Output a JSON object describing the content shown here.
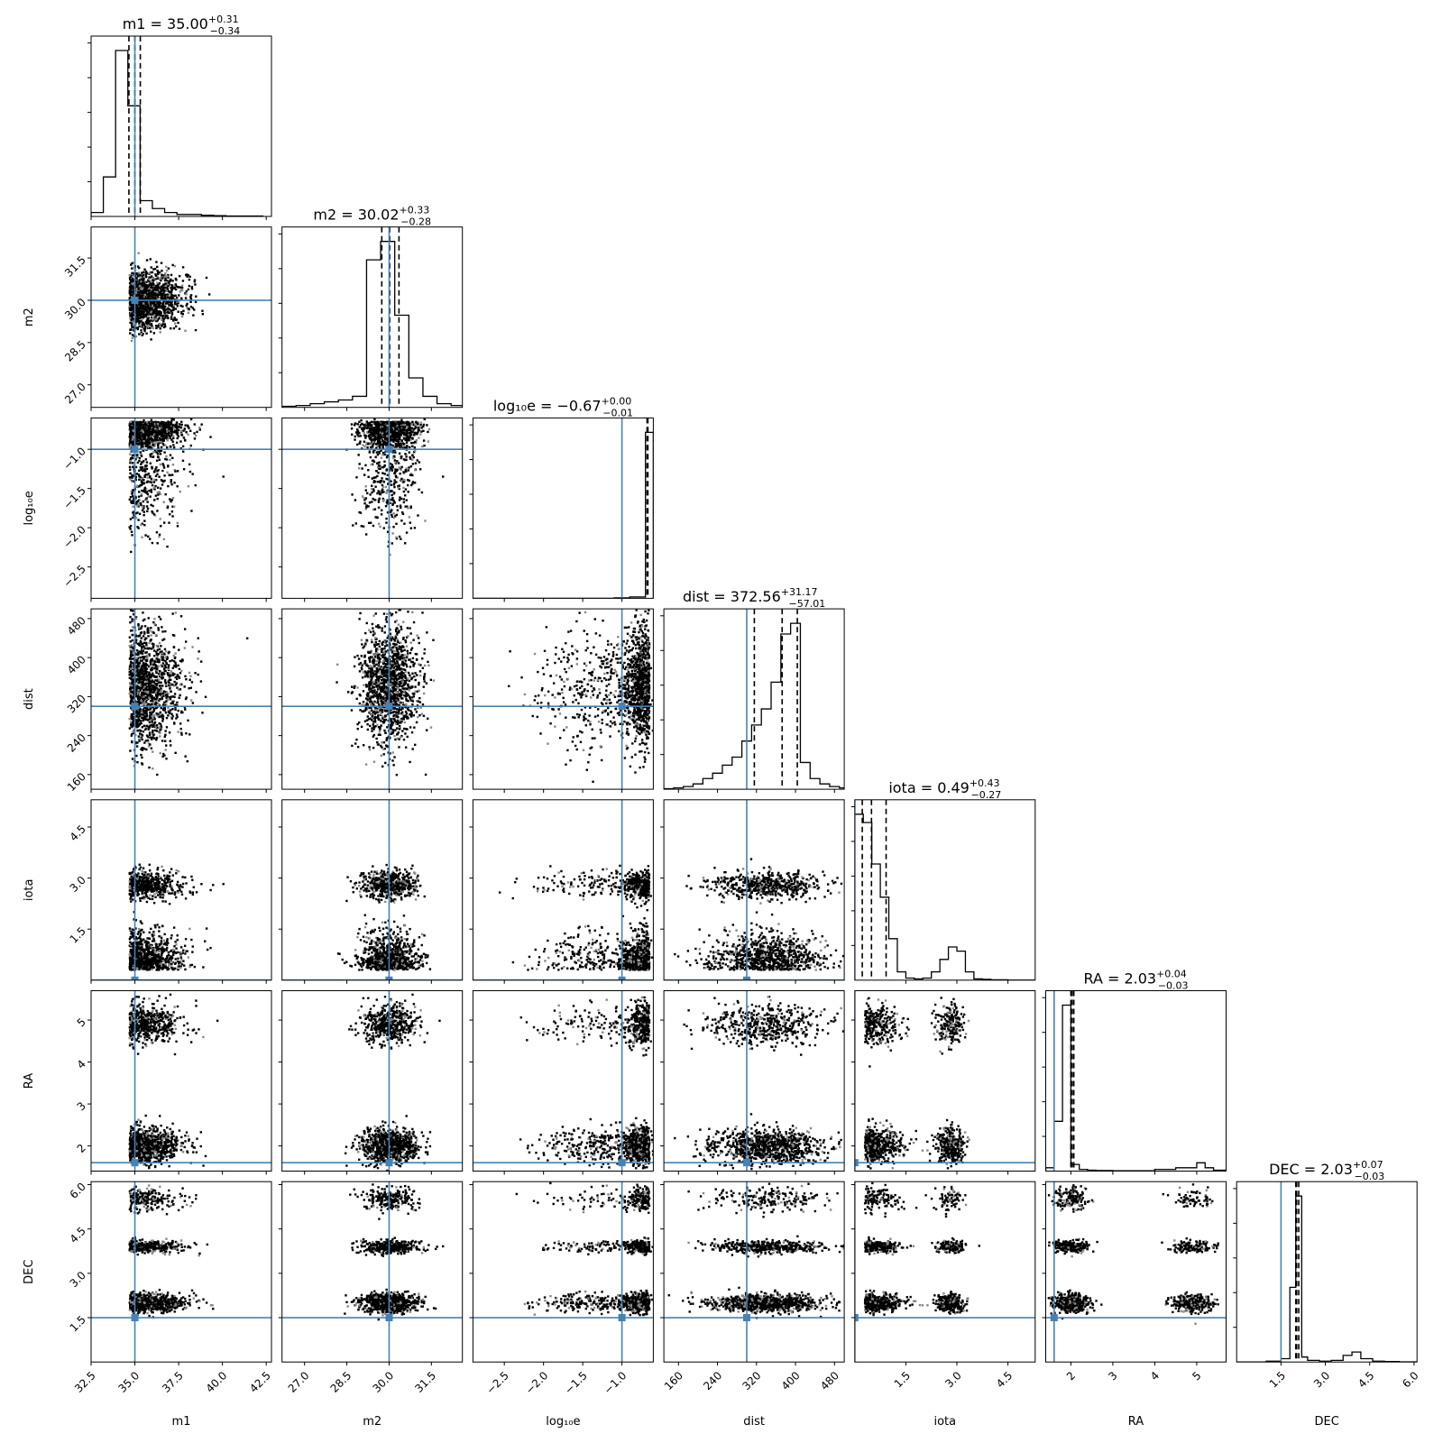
{
  "chart_data": {
    "type": "corner",
    "parameters": [
      {
        "key": "m1",
        "label": "m1",
        "range": [
          32.5,
          42.8
        ],
        "ticks": [
          32.5,
          35.0,
          37.5,
          40.0,
          42.5
        ],
        "tick_labels": [
          "32.5",
          "35.0",
          "37.5",
          "40.0",
          "42.5"
        ],
        "truth": 35.0,
        "median": 35.0,
        "plus": "0.31",
        "minus": "0.34",
        "title": "m1 = 35.00"
      },
      {
        "key": "m2",
        "label": "m2",
        "range": [
          26.2,
          32.6
        ],
        "ticks": [
          27.0,
          28.5,
          30.0,
          31.5
        ],
        "tick_labels": [
          "27.0",
          "28.5",
          "30.0",
          "31.5"
        ],
        "truth": 30.0,
        "median": 30.02,
        "plus": "0.33",
        "minus": "0.28",
        "title": "m2 = 30.02"
      },
      {
        "key": "log10e",
        "label": "log₁₀e",
        "range": [
          -2.9,
          -0.6
        ],
        "ticks": [
          -2.5,
          -2.0,
          -1.5,
          -1.0
        ],
        "tick_labels": [
          "−2.5",
          "−2.0",
          "−1.5",
          "−1.0"
        ],
        "truth": -1.0,
        "median": -0.67,
        "plus": "0.00",
        "minus": "0.01",
        "title": "log₁₀e = −0.67"
      },
      {
        "key": "dist",
        "label": "dist",
        "range": [
          130,
          500
        ],
        "ticks": [
          160,
          240,
          320,
          400,
          480
        ],
        "tick_labels": [
          "160",
          "240",
          "320",
          "400",
          "480"
        ],
        "truth": 300,
        "median": 372.56,
        "plus": "31.17",
        "minus": "57.01",
        "title": "dist = 372.56"
      },
      {
        "key": "iota",
        "label": "iota",
        "range": [
          0.0,
          5.3
        ],
        "ticks": [
          1.5,
          3.0,
          4.5
        ],
        "tick_labels": [
          "1.5",
          "3.0",
          "4.5"
        ],
        "truth": 0.0,
        "median": 0.49,
        "plus": "0.43",
        "minus": "0.27",
        "title": "iota = 0.49"
      },
      {
        "key": "RA",
        "label": "RA",
        "range": [
          1.4,
          5.7
        ],
        "ticks": [
          2,
          3,
          4,
          5
        ],
        "tick_labels": [
          "2",
          "3",
          "4",
          "5"
        ],
        "truth": 1.6,
        "median": 2.03,
        "plus": "0.04",
        "minus": "0.03",
        "title": "RA = 2.03"
      },
      {
        "key": "DEC",
        "label": "DEC",
        "range": [
          0.0,
          6.1
        ],
        "ticks": [
          1.5,
          3.0,
          4.5,
          6.0
        ],
        "tick_labels": [
          "1.5",
          "3.0",
          "4.5",
          "6.0"
        ],
        "truth": 1.5,
        "median": 2.03,
        "plus": "0.07",
        "minus": "0.03",
        "title": "DEC = 2.03"
      }
    ],
    "histograms": [
      {
        "bins": [
          32.5,
          33.2,
          33.9,
          34.6,
          35.3,
          36.0,
          36.7,
          37.4,
          38.1,
          38.8,
          39.5,
          40.2,
          40.9,
          41.6,
          42.3
        ],
        "counts": [
          1,
          10,
          42,
          28,
          4,
          2,
          1,
          0.5,
          0.5,
          0.3,
          0.2,
          0.1,
          0.1,
          0.1
        ]
      },
      {
        "bins": [
          26.2,
          26.7,
          27.2,
          27.7,
          28.2,
          28.7,
          29.2,
          29.7,
          30.2,
          30.7,
          31.2,
          31.7,
          32.2,
          32.6
        ],
        "counts": [
          0.3,
          0.5,
          1,
          1.5,
          2,
          3,
          40,
          45,
          25,
          8,
          3,
          1,
          0.5
        ]
      },
      {
        "bins": [
          -2.9,
          -2.7,
          -2.5,
          -2.3,
          -2.1,
          -1.9,
          -1.7,
          -1.5,
          -1.3,
          -1.1,
          -0.9,
          -0.7,
          -0.6
        ],
        "counts": [
          0,
          0,
          0,
          0,
          0,
          0,
          0,
          0,
          0,
          0.3,
          0.8,
          100
        ]
      },
      {
        "bins": [
          130,
          150,
          170,
          190,
          210,
          230,
          250,
          270,
          290,
          310,
          330,
          350,
          370,
          390,
          410,
          430,
          450,
          470,
          490,
          500
        ],
        "counts": [
          0.2,
          0.5,
          1,
          2,
          4,
          6,
          9,
          12,
          18,
          24,
          30,
          40,
          58,
          62,
          10,
          4,
          2,
          1,
          0.5
        ]
      },
      {
        "bins": [
          0.0,
          0.25,
          0.5,
          0.75,
          1.0,
          1.25,
          1.5,
          1.75,
          2.0,
          2.25,
          2.5,
          2.75,
          3.0,
          3.25,
          3.5,
          3.75,
          4.0,
          4.5,
          5.3
        ],
        "counts": [
          40,
          38,
          28,
          20,
          10,
          2,
          0.5,
          0.3,
          0.5,
          2,
          5,
          8,
          7,
          2,
          0.3,
          0.2,
          0.1,
          0
        ]
      },
      {
        "bins": [
          1.4,
          1.6,
          1.8,
          2.0,
          2.2,
          2.4,
          2.6,
          2.8,
          3.0,
          3.5,
          4.0,
          4.5,
          5.0,
          5.2,
          5.4,
          5.7
        ],
        "counts": [
          2,
          30,
          100,
          4,
          1,
          0.5,
          0.3,
          0.3,
          0.2,
          0.2,
          1,
          2,
          5,
          2,
          0.5
        ]
      },
      {
        "bins": [
          0.0,
          0.5,
          1.0,
          1.5,
          1.8,
          2.0,
          2.2,
          2.4,
          2.8,
          3.2,
          3.6,
          3.9,
          4.2,
          4.6,
          5.0,
          5.5,
          6.1
        ],
        "counts": [
          0,
          0,
          0.5,
          2,
          45,
          100,
          3,
          1,
          0.5,
          1,
          4,
          6,
          2,
          0.5,
          0.3,
          0.1
        ]
      }
    ],
    "truth_color": "#4682b4",
    "hist_color": "#000000",
    "grid": false
  }
}
